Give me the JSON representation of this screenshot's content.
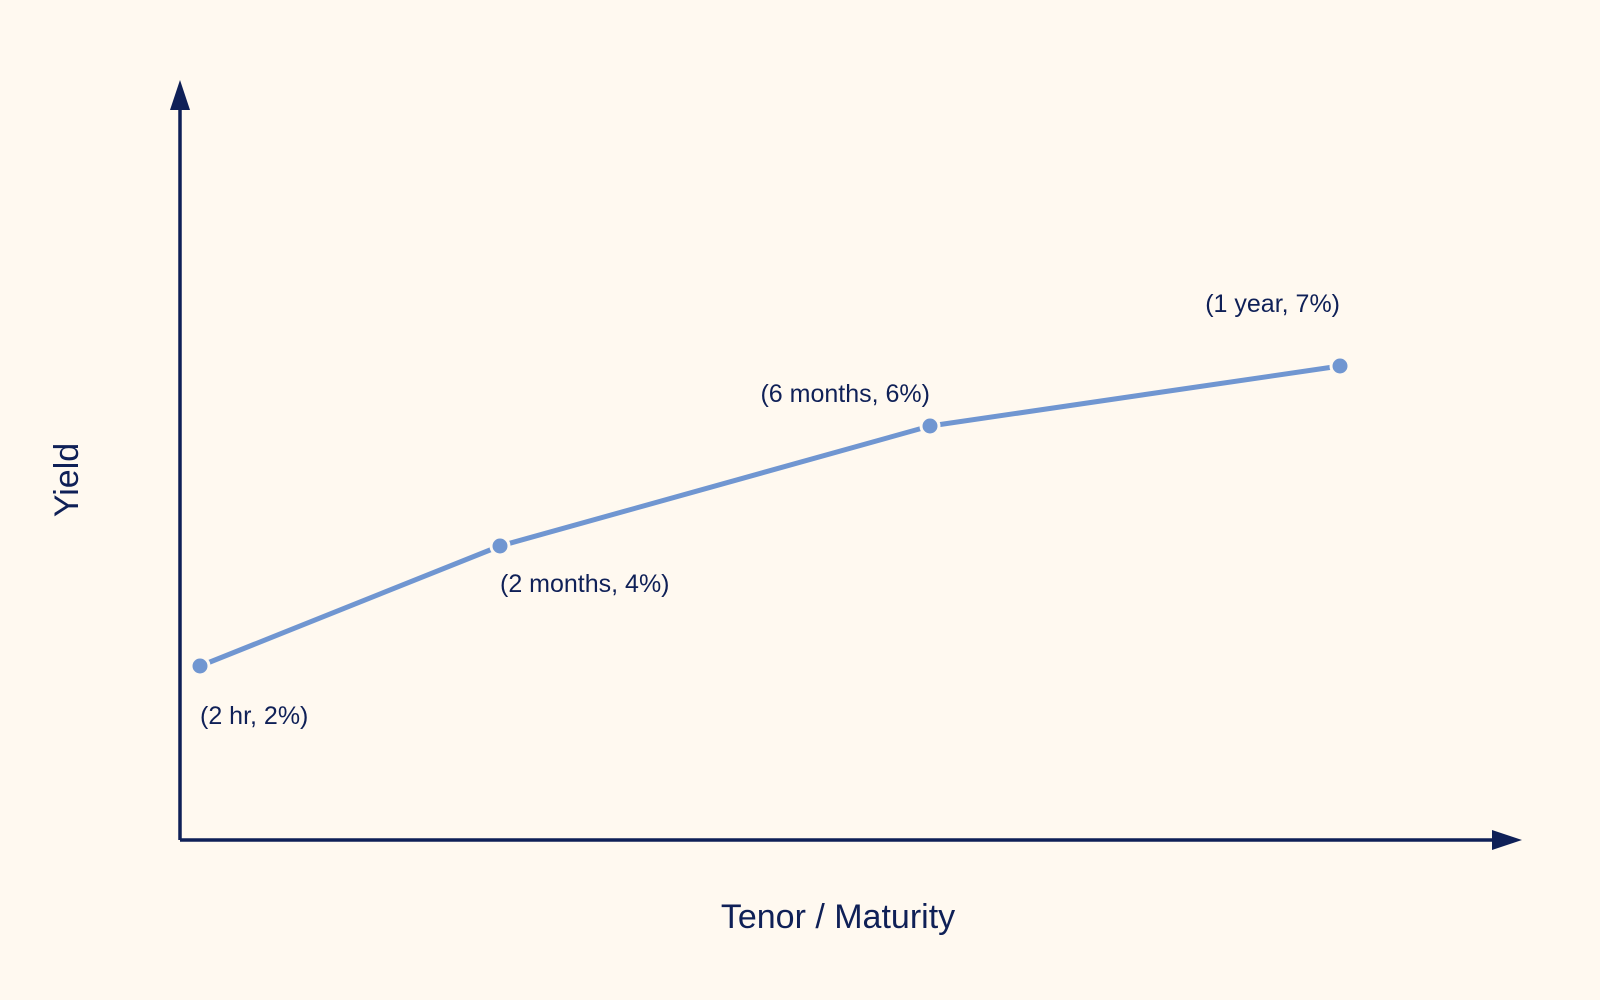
{
  "chart_data": {
    "type": "line",
    "title": "",
    "xlabel": "Tenor / Maturity",
    "ylabel": "Yield",
    "grid": false,
    "legend": "none",
    "x_scale": "categorical-uneven",
    "series": [
      {
        "points": [
          {
            "tenor": "2 hr",
            "yield_pct": 2,
            "label": "(2 hr, 2%)"
          },
          {
            "tenor": "2 months",
            "yield_pct": 4,
            "label": "(2 months, 4%)"
          },
          {
            "tenor": "6 months",
            "yield_pct": 6,
            "label": "(6 months, 6%)"
          },
          {
            "tenor": "1 year",
            "yield_pct": 7,
            "label": "(1 year, 7%)"
          }
        ]
      }
    ],
    "colors": {
      "background": "#fff9f0",
      "axis": "#0f2057",
      "series": "#7096d1",
      "text": "#0f2057"
    }
  }
}
